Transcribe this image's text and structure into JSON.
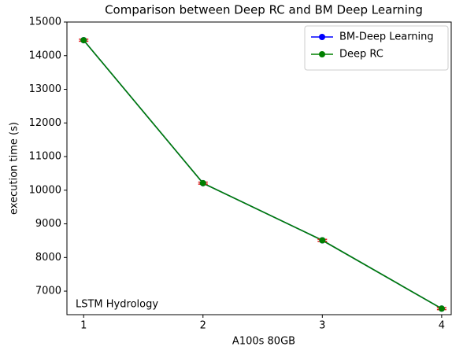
{
  "chart_data": {
    "type": "line",
    "title": "Comparison between Deep RC and BM Deep Learning",
    "x_label": "A100s 80GB",
    "y_label": "execution time (s)",
    "annotation": "LSTM Hydrology",
    "x": [
      1,
      2,
      3,
      4
    ],
    "series": [
      {
        "name": "BM-Deep Learning",
        "color": "#0000ff",
        "values": [
          14460,
          10210,
          8510,
          6480
        ]
      },
      {
        "name": "Deep RC",
        "color": "#008000",
        "values": [
          14460,
          10210,
          8510,
          6480
        ],
        "errors": [
          30,
          30,
          30,
          30
        ],
        "error_color": "#e41a1c"
      }
    ],
    "xlim": [
      0.86,
      4.08
    ],
    "xticks": [
      1,
      2,
      3,
      4
    ],
    "ylim": [
      6300,
      15000
    ],
    "yticks": [
      7000,
      8000,
      9000,
      10000,
      11000,
      12000,
      13000,
      14000,
      15000
    ],
    "legend": "upper right"
  }
}
